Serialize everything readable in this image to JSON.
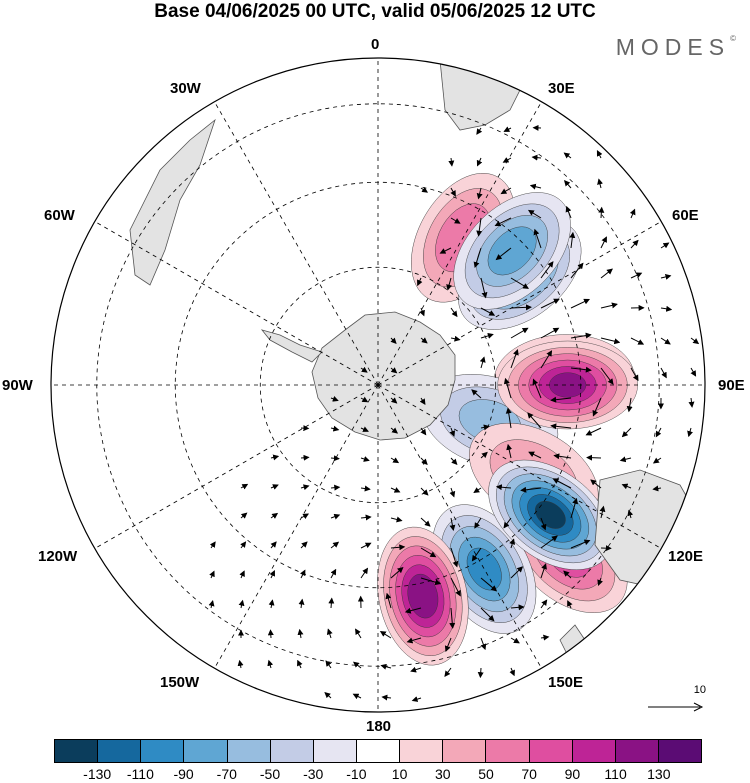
{
  "title": "Base 04/06/2025 00 UTC, valid 05/06/2025 12 UTC",
  "brand": "MODES",
  "brand_mark": "©",
  "longitude_labels": {
    "lon_0": "0",
    "lon_30e": "30E",
    "lon_60e": "60E",
    "lon_90e": "90E",
    "lon_120e": "120E",
    "lon_150e": "150E",
    "lon_180": "180",
    "lon_150w": "150W",
    "lon_120w": "120W",
    "lon_90w": "90W",
    "lon_60w": "60W",
    "lon_30w": "30W"
  },
  "reference_vector": "10",
  "colorbar": {
    "colors": [
      "#0b3d5c",
      "#15689e",
      "#2f8bc4",
      "#5fa6d3",
      "#97bddf",
      "#c3cce6",
      "#e6e5f2",
      "#ffffff",
      "#f9d3d8",
      "#f3a8b8",
      "#ec7aa8",
      "#df4ea0",
      "#be2496",
      "#8a1284",
      "#5b0c74"
    ],
    "labels": [
      "-130",
      "-110",
      "-90",
      "-70",
      "-50",
      "-30",
      "-10",
      "10",
      "30",
      "50",
      "70",
      "90",
      "110",
      "130"
    ]
  },
  "map_anomalies": [
    {
      "lon": 30,
      "lat_index": 0.52,
      "value": 65
    },
    {
      "lon": 52,
      "lat_index": 0.55,
      "value": -85
    },
    {
      "lon": 88,
      "lat_index": 0.57,
      "value": 60
    },
    {
      "lon": 108,
      "lat_index": 0.36,
      "value": -55
    },
    {
      "lon": 120,
      "lat_index": 0.55,
      "value": 45
    },
    {
      "lon": 132,
      "lat_index": 0.78,
      "value": 75
    },
    {
      "lon": 150,
      "lat_index": 0.65,
      "value": -95
    },
    {
      "lon": 168,
      "lat_index": 0.66,
      "value": 120
    },
    {
      "lon": 127,
      "lat_index": 0.66,
      "value": -130
    },
    {
      "lon": 90,
      "lat_index": 0.58,
      "value": 110
    },
    {
      "lon": 45,
      "lat_index": 0.58,
      "value": -80
    }
  ],
  "colors": {
    "land": "#e3e3e3",
    "coast": "#555555"
  }
}
